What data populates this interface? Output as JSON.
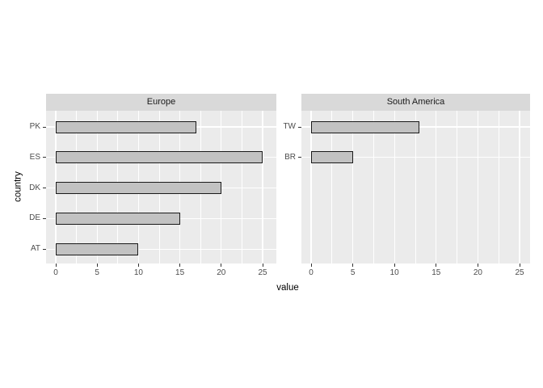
{
  "chart_data": {
    "type": "bar",
    "orientation": "horizontal",
    "title": "",
    "xlabel": "value",
    "ylabel": "country",
    "x_ticks": [
      0,
      5,
      10,
      15,
      20,
      25
    ],
    "xlim": [
      -1.25,
      26.25
    ],
    "grid": "on",
    "legend": "none",
    "facets": [
      {
        "label": "Europe",
        "categories": [
          "PK",
          "ES",
          "DK",
          "DE",
          "AT"
        ],
        "values": [
          17,
          25,
          20,
          15,
          10
        ]
      },
      {
        "label": "South America",
        "categories": [
          "TW",
          "BR"
        ],
        "values": [
          13,
          5
        ]
      }
    ],
    "colors": {
      "background": "#FFFFFF",
      "panel_bg": "#EBEBEB",
      "strip_bg": "#D9D9D9",
      "bar_fill": "#C2C2C2",
      "bar_border": "#1A1A1A",
      "gridline": "#FFFFFF",
      "axis_text": "#4D4D4D",
      "axis_title_text": "#000000",
      "strip_text": "#1A1A1A"
    }
  }
}
